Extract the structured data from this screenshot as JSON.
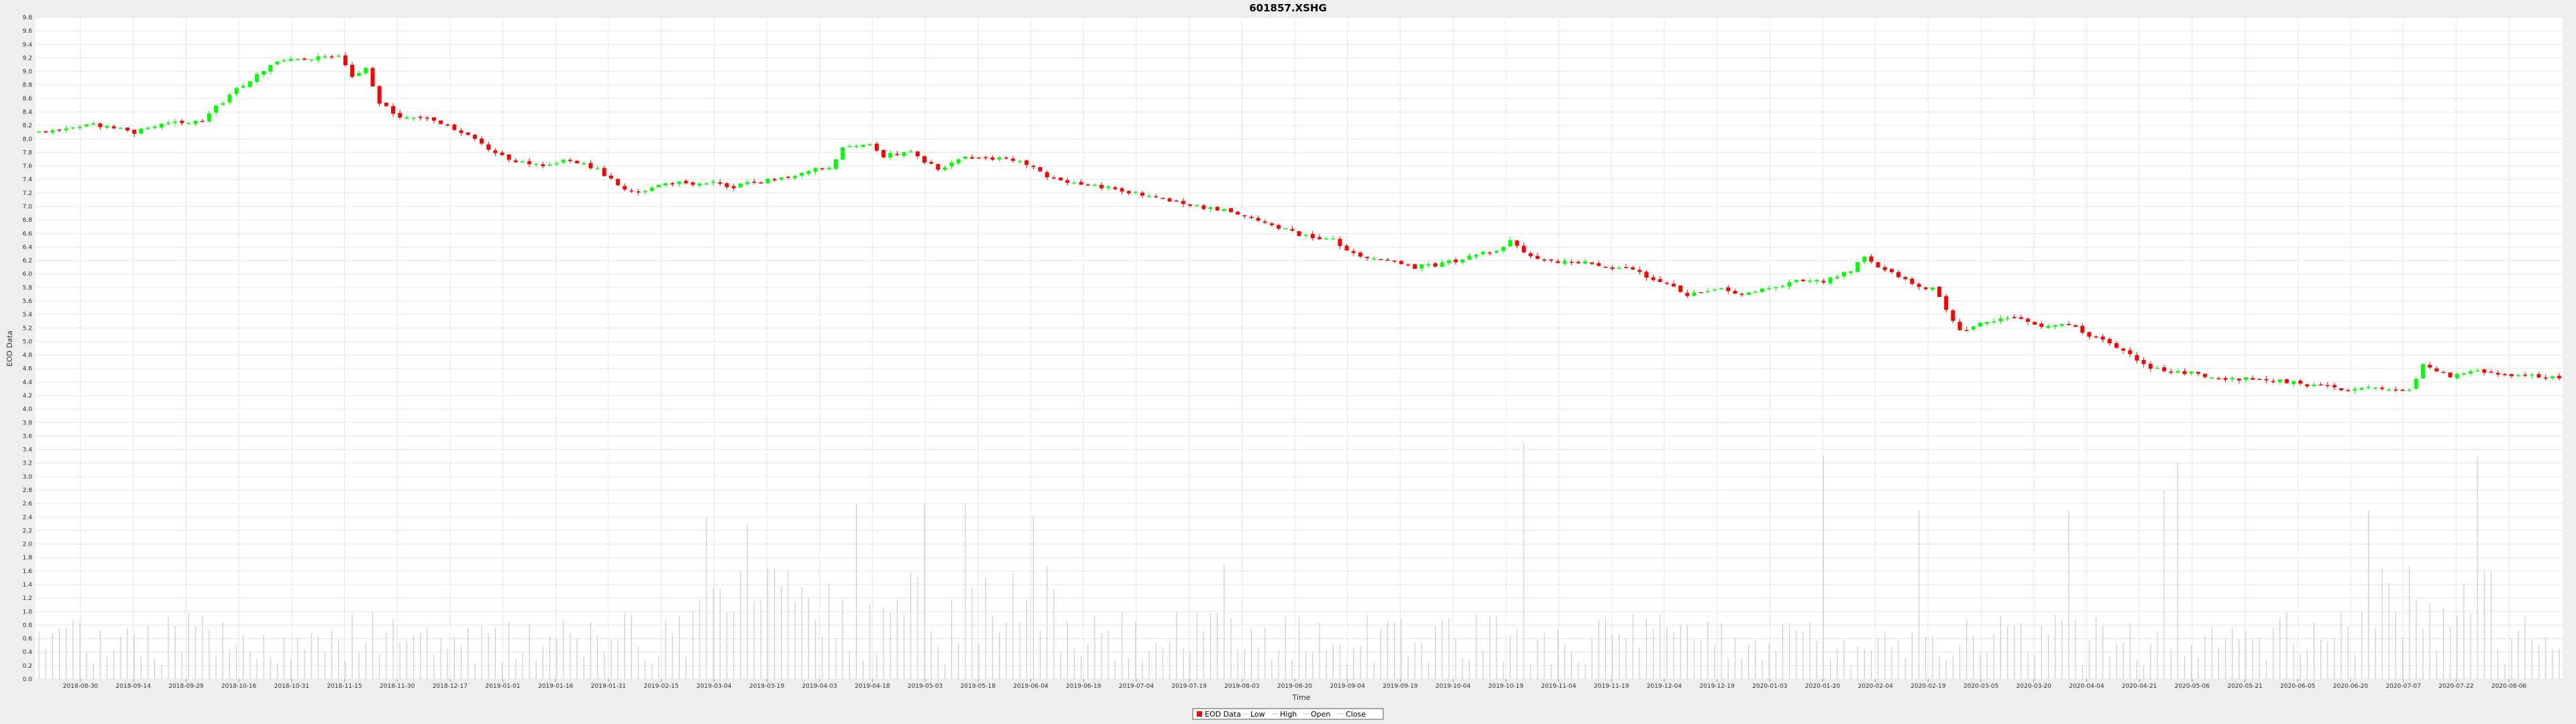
{
  "chart_data": {
    "type": "candlestick",
    "title": "601857.XSHG",
    "xlabel": "Time",
    "ylabel": "EOD Data",
    "ylim": [
      0.0,
      9.8
    ],
    "y_tick_step": 0.2,
    "x_ticks": [
      "2018-08-30",
      "2018-09-14",
      "2018-09-29",
      "2018-10-16",
      "2018-10-31",
      "2018-11-15",
      "2018-11-30",
      "2018-12-17",
      "2019-01-01",
      "2019-01-16",
      "2019-01-31",
      "2019-02-15",
      "2019-03-04",
      "2019-03-19",
      "2019-04-03",
      "2019-04-18",
      "2019-05-03",
      "2019-05-18",
      "2019-06-04",
      "2019-06-19",
      "2019-07-04",
      "2019-07-19",
      "2019-08-03",
      "2019-08-20",
      "2019-09-04",
      "2019-09-19",
      "2019-10-04",
      "2019-10-19",
      "2019-11-04",
      "2019-11-19",
      "2019-12-04",
      "2019-12-19",
      "2020-01-03",
      "2020-01-20",
      "2020-02-04",
      "2020-02-19",
      "2020-03-05",
      "2020-03-20",
      "2020-04-04",
      "2020-04-21",
      "2020-05-06",
      "2020-05-21",
      "2020-06-05",
      "2020-06-20",
      "2020-07-07",
      "2020-07-22",
      "2020-08-06"
    ],
    "grid": true,
    "legend_position": "bottom-center",
    "legend": [
      "EOD Data",
      "Low",
      "High",
      "Open",
      "Close"
    ],
    "colors": {
      "up": "#00ff00",
      "down": "#ff0000",
      "volume": "#cccccc",
      "grid": "#e6e6e6",
      "frame": "#ffffff"
    },
    "price_path": [
      [
        0,
        8.1
      ],
      [
        8,
        8.22
      ],
      [
        14,
        8.1
      ],
      [
        20,
        8.25
      ],
      [
        24,
        8.28
      ],
      [
        28,
        8.65
      ],
      [
        32,
        8.95
      ],
      [
        36,
        9.18
      ],
      [
        40,
        9.2
      ],
      [
        44,
        9.25
      ],
      [
        46,
        8.9
      ],
      [
        48,
        9.05
      ],
      [
        50,
        8.55
      ],
      [
        53,
        8.3
      ],
      [
        58,
        8.3
      ],
      [
        62,
        8.1
      ],
      [
        66,
        7.85
      ],
      [
        70,
        7.65
      ],
      [
        74,
        7.6
      ],
      [
        78,
        7.7
      ],
      [
        82,
        7.55
      ],
      [
        86,
        7.25
      ],
      [
        88,
        7.2
      ],
      [
        92,
        7.35
      ],
      [
        98,
        7.35
      ],
      [
        102,
        7.3
      ],
      [
        108,
        7.4
      ],
      [
        112,
        7.5
      ],
      [
        116,
        7.6
      ],
      [
        118,
        7.85
      ],
      [
        122,
        7.95
      ],
      [
        124,
        7.75
      ],
      [
        128,
        7.8
      ],
      [
        132,
        7.55
      ],
      [
        136,
        7.75
      ],
      [
        140,
        7.7
      ],
      [
        144,
        7.7
      ],
      [
        148,
        7.45
      ],
      [
        152,
        7.35
      ],
      [
        158,
        7.25
      ],
      [
        164,
        7.15
      ],
      [
        170,
        7.0
      ],
      [
        176,
        6.9
      ],
      [
        180,
        6.75
      ],
      [
        186,
        6.55
      ],
      [
        190,
        6.5
      ],
      [
        194,
        6.25
      ],
      [
        198,
        6.2
      ],
      [
        202,
        6.1
      ],
      [
        206,
        6.15
      ],
      [
        210,
        6.25
      ],
      [
        214,
        6.35
      ],
      [
        216,
        6.5
      ],
      [
        218,
        6.3
      ],
      [
        222,
        6.2
      ],
      [
        228,
        6.15
      ],
      [
        234,
        6.05
      ],
      [
        238,
        5.9
      ],
      [
        242,
        5.7
      ],
      [
        246,
        5.8
      ],
      [
        250,
        5.7
      ],
      [
        254,
        5.8
      ],
      [
        258,
        5.9
      ],
      [
        262,
        5.9
      ],
      [
        266,
        6.05
      ],
      [
        268,
        6.25
      ],
      [
        272,
        6.0
      ],
      [
        276,
        5.8
      ],
      [
        278,
        5.8
      ],
      [
        282,
        5.15
      ],
      [
        286,
        5.3
      ],
      [
        290,
        5.35
      ],
      [
        294,
        5.2
      ],
      [
        298,
        5.25
      ],
      [
        302,
        5.05
      ],
      [
        306,
        4.85
      ],
      [
        310,
        4.6
      ],
      [
        314,
        4.55
      ],
      [
        318,
        4.5
      ],
      [
        322,
        4.45
      ],
      [
        326,
        4.45
      ],
      [
        330,
        4.4
      ],
      [
        334,
        4.35
      ],
      [
        338,
        4.3
      ],
      [
        342,
        4.3
      ],
      [
        346,
        4.25
      ],
      [
        348,
        4.3
      ],
      [
        350,
        4.65
      ],
      [
        354,
        4.5
      ],
      [
        358,
        4.55
      ],
      [
        362,
        4.5
      ],
      [
        366,
        4.5
      ],
      [
        370,
        4.45
      ]
    ],
    "volume_spikes": [
      [
        98,
        2.4
      ],
      [
        104,
        2.3
      ],
      [
        120,
        2.6
      ],
      [
        130,
        2.6
      ],
      [
        136,
        2.6
      ],
      [
        146,
        2.4
      ],
      [
        174,
        1.7
      ],
      [
        218,
        3.5
      ],
      [
        262,
        3.3
      ],
      [
        276,
        2.5
      ],
      [
        298,
        2.5
      ],
      [
        312,
        2.8
      ],
      [
        314,
        3.2
      ],
      [
        342,
        2.5
      ],
      [
        358,
        3.3
      ]
    ]
  }
}
